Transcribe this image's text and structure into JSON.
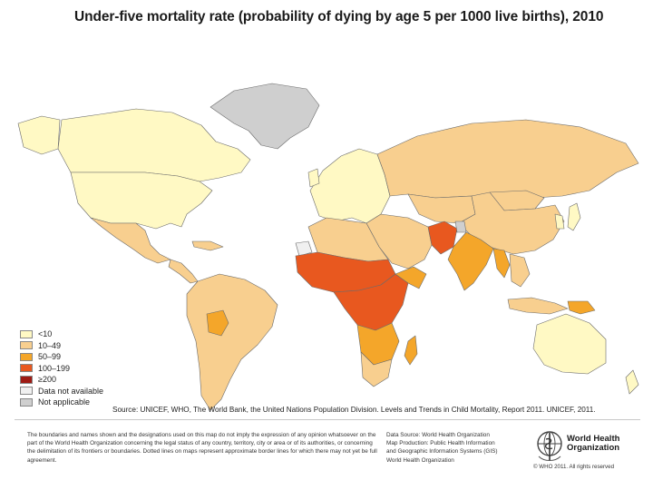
{
  "title": "Under-five mortality rate (probability of dying by age 5 per 1000 live births), 2010",
  "colors": {
    "lt10": "#fff9c4",
    "c10_49": "#f8cf8f",
    "c50_99": "#f4a62a",
    "c100_199": "#e8581f",
    "ge200": "#9e1b14",
    "no_data": "#f0f0f0",
    "not_applicable": "#cfcfcf",
    "border": "#6b6b6b"
  },
  "legend": {
    "items": [
      {
        "label": "<10"
      },
      {
        "label": "10–49"
      },
      {
        "label": "50–99"
      },
      {
        "label": "100–199"
      },
      {
        "label": "≥200"
      },
      {
        "label": "Data not available"
      },
      {
        "label": "Not applicable"
      }
    ]
  },
  "source": "Source: UNICEF, WHO, The World Bank, the United Nations Population Division. Levels and Trends in Child Mortality, Report 2011. UNICEF, 2011.",
  "footer": {
    "disclaimer": "The boundaries and names shown and the designations used on this map do not imply the expression of any opinion whatsoever on the part of the World Health Organization concerning the legal status of any country, territory, city or area or of its authorities, or concerning the delimitation of its frontiers or boundaries. Dotted lines on maps represent approximate border lines for which there may not yet be full agreement.",
    "data_source_lines": [
      "Data Source: World Health Organization",
      "Map Production: Public Health Information",
      "and Geographic Information Systems (GIS)",
      "World Health Organization"
    ],
    "org_line1": "World Health",
    "org_line2": "Organization",
    "copyright": "© WHO 2011. All rights reserved"
  },
  "map": {
    "regions": [
      {
        "name": "greenland",
        "category": "not_applicable"
      },
      {
        "name": "canada",
        "category": "lt10"
      },
      {
        "name": "usa",
        "category": "lt10"
      },
      {
        "name": "mexico",
        "category": "c10_49"
      },
      {
        "name": "central-america",
        "category": "c10_49"
      },
      {
        "name": "south-america",
        "category": "c10_49"
      },
      {
        "name": "bolivia",
        "category": "c50_99"
      },
      {
        "name": "europe",
        "category": "lt10"
      },
      {
        "name": "russia",
        "category": "c10_49"
      },
      {
        "name": "north-africa",
        "category": "c10_49"
      },
      {
        "name": "middle-east",
        "category": "c10_49"
      },
      {
        "name": "sahel-west-africa",
        "category": "c100_199"
      },
      {
        "name": "central-africa",
        "category": "c100_199"
      },
      {
        "name": "east-africa",
        "category": "c50_99"
      },
      {
        "name": "southern-africa",
        "category": "c50_99"
      },
      {
        "name": "south-africa",
        "category": "c10_49"
      },
      {
        "name": "madagascar",
        "category": "c50_99"
      },
      {
        "name": "afghanistan-pakistan",
        "category": "c100_199"
      },
      {
        "name": "india",
        "category": "c50_99"
      },
      {
        "name": "china",
        "category": "c10_49"
      },
      {
        "name": "central-asia",
        "category": "c10_49"
      },
      {
        "name": "mongolia",
        "category": "c10_49"
      },
      {
        "name": "southeast-asia",
        "category": "c10_49"
      },
      {
        "name": "myanmar-laos",
        "category": "c50_99"
      },
      {
        "name": "indonesia",
        "category": "c10_49"
      },
      {
        "name": "papua-new-guinea",
        "category": "c50_99"
      },
      {
        "name": "japan",
        "category": "lt10"
      },
      {
        "name": "korea",
        "category": "lt10"
      },
      {
        "name": "australia",
        "category": "lt10"
      },
      {
        "name": "new-zealand",
        "category": "lt10"
      },
      {
        "name": "kashmir",
        "category": "not_applicable"
      },
      {
        "name": "western-sahara",
        "category": "no_data"
      }
    ]
  }
}
